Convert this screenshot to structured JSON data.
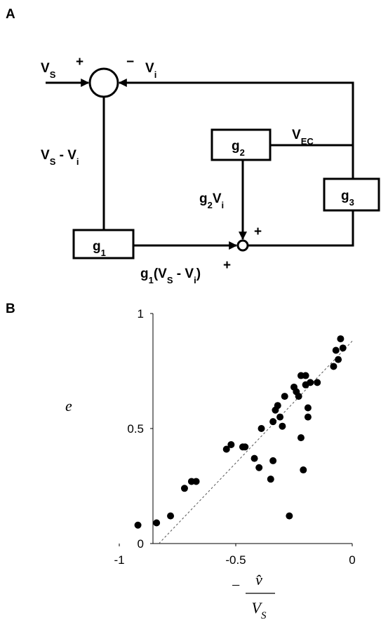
{
  "panel_a": {
    "panel_label": "A",
    "labels": {
      "vs_in": [
        "V",
        "S"
      ],
      "plus_in": "+",
      "minus_fb": "−",
      "vi_fb": [
        "V",
        "i"
      ],
      "err": [
        "V",
        "S",
        " - V",
        "i"
      ],
      "vec": [
        "V",
        "EC"
      ],
      "g1": [
        "g",
        "1"
      ],
      "g2": [
        "g",
        "2"
      ],
      "g3": [
        "g",
        "3"
      ],
      "g2vi": [
        "g",
        "2",
        "V",
        "i"
      ],
      "plus_top": "+",
      "plus_bottom": "+",
      "g1err": [
        "g",
        "1",
        "(V",
        "S",
        " - V",
        "i",
        ")"
      ]
    }
  },
  "chart_data": {
    "type": "scatter",
    "panel_label": "B",
    "ylabel": "e",
    "xlabel": {
      "sign": "−",
      "numerator": "v̂",
      "denominator": [
        "V",
        "S"
      ]
    },
    "xlim": [
      -1,
      0
    ],
    "ylim": [
      0,
      1
    ],
    "xticks": [
      -1,
      -0.5,
      0
    ],
    "yticks": [
      0,
      0.5,
      1
    ],
    "color": "#000000",
    "x": [
      -0.92,
      -0.84,
      -0.78,
      -0.72,
      -0.69,
      -0.67,
      -0.54,
      -0.52,
      -0.47,
      -0.46,
      -0.42,
      -0.4,
      -0.39,
      -0.35,
      -0.34,
      -0.34,
      -0.33,
      -0.32,
      -0.31,
      -0.3,
      -0.29,
      -0.27,
      -0.25,
      -0.24,
      -0.23,
      -0.22,
      -0.22,
      -0.21,
      -0.2,
      -0.2,
      -0.19,
      -0.19,
      -0.18,
      -0.15,
      -0.08,
      -0.07,
      -0.06,
      -0.05,
      -0.04
    ],
    "values": [
      0.08,
      0.09,
      0.12,
      0.24,
      0.27,
      0.27,
      0.41,
      0.43,
      0.42,
      0.42,
      0.37,
      0.33,
      0.5,
      0.28,
      0.36,
      0.53,
      0.58,
      0.6,
      0.55,
      0.51,
      0.64,
      0.12,
      0.68,
      0.66,
      0.64,
      0.73,
      0.46,
      0.32,
      0.73,
      0.69,
      0.59,
      0.55,
      0.7,
      0.7,
      0.77,
      0.84,
      0.8,
      0.89,
      0.85
    ],
    "fit_line": {
      "x": [
        -0.83,
        0
      ],
      "values": [
        0,
        0.88
      ]
    }
  }
}
